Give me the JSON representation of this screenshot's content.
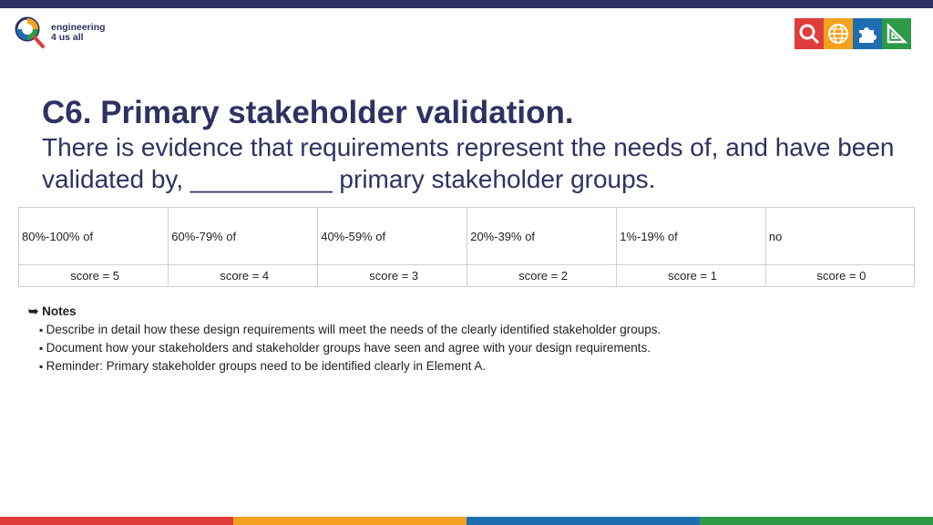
{
  "brand": {
    "line1": "engineering",
    "line2": "4 us all"
  },
  "header_icons": [
    "magnifier-icon",
    "globe-icon",
    "puzzle-icon",
    "set-square-icon"
  ],
  "colors": {
    "navy": "#2e3262",
    "red": "#e03c3c",
    "orange": "#f4a11d",
    "blue": "#1f6db1",
    "green": "#2e9a48"
  },
  "title": "C6. Primary stakeholder validation.",
  "subtitle": "There is evidence that requirements represent the needs of, and have been validated by, __________ primary stakeholder groups.",
  "rubric": {
    "levels": [
      "80%-100% of",
      "60%-79% of",
      "40%-59% of",
      "20%-39% of",
      "1%-19% of",
      "no"
    ],
    "scores": [
      "score = 5",
      "score = 4",
      "score = 3",
      "score = 2",
      "score = 1",
      "score = 0"
    ]
  },
  "notes": {
    "marker": "➥",
    "heading": "Notes",
    "items": [
      "Describe in detail how these design requirements will meet the needs of the clearly identified stakeholder groups.",
      "Document how your stakeholders and stakeholder groups have seen and agree with your design requirements.",
      "Reminder: Primary stakeholder groups need to be identified clearly in Element A."
    ]
  }
}
